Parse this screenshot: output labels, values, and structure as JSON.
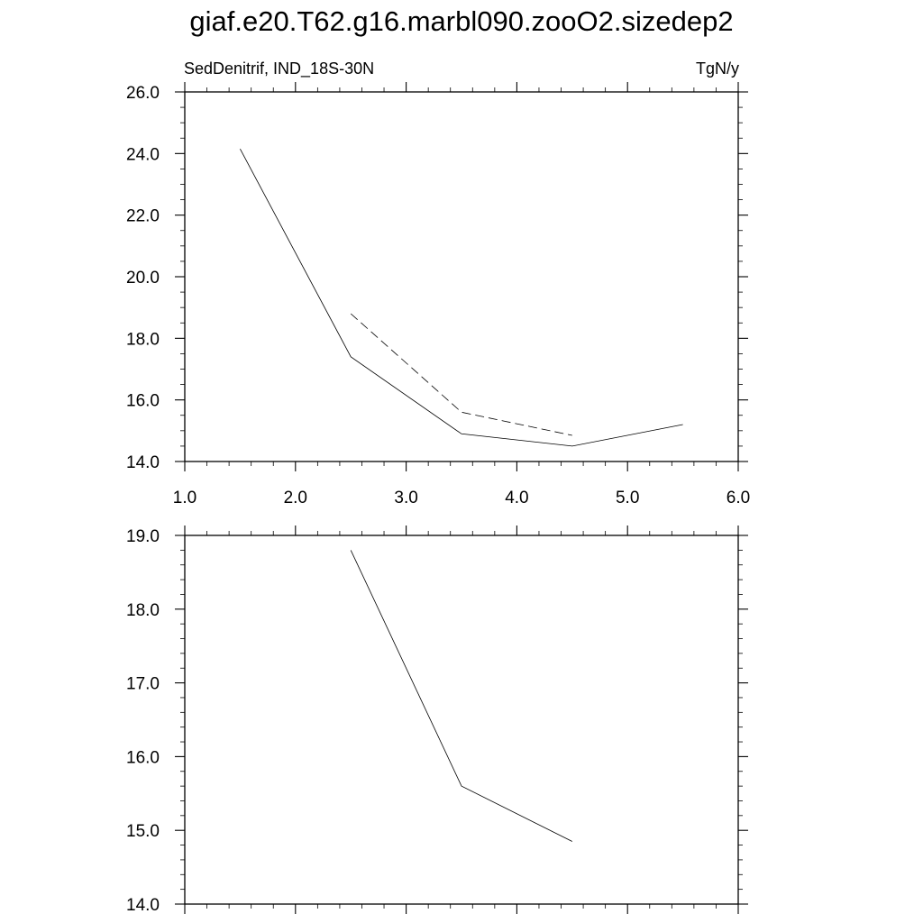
{
  "title": "giaf.e20.T62.g16.marbl090.zooO2.sizedep2",
  "left_subtitle": "SedDenitrif, IND_18S-30N",
  "right_subtitle": "TgN/y",
  "chart_data": [
    {
      "type": "line",
      "title": "",
      "xlabel": "",
      "ylabel": "",
      "xlim": [
        1.0,
        6.0
      ],
      "ylim": [
        14.0,
        26.0
      ],
      "x_ticks": [
        "1.0",
        "2.0",
        "3.0",
        "4.0",
        "5.0",
        "6.0"
      ],
      "y_ticks": [
        "14.0",
        "16.0",
        "18.0",
        "20.0",
        "22.0",
        "24.0",
        "26.0"
      ],
      "grid": false,
      "series": [
        {
          "style": "solid",
          "x": [
            1.5,
            2.5,
            3.5,
            4.5,
            5.5
          ],
          "y": [
            24.15,
            17.4,
            14.9,
            14.5,
            15.2
          ]
        },
        {
          "style": "dashed",
          "x": [
            2.5,
            3.5,
            4.5
          ],
          "y": [
            18.8,
            15.6,
            14.85
          ]
        }
      ]
    },
    {
      "type": "line",
      "title": "",
      "xlabel": "",
      "ylabel": "",
      "xlim": [
        1.0,
        6.0
      ],
      "ylim": [
        14.0,
        19.0
      ],
      "x_ticks": [],
      "y_ticks": [
        "14.0",
        "15.0",
        "16.0",
        "17.0",
        "18.0",
        "19.0"
      ],
      "grid": false,
      "series": [
        {
          "style": "solid",
          "x": [
            2.5,
            3.5,
            4.5
          ],
          "y": [
            18.8,
            15.6,
            14.85
          ]
        }
      ]
    }
  ]
}
